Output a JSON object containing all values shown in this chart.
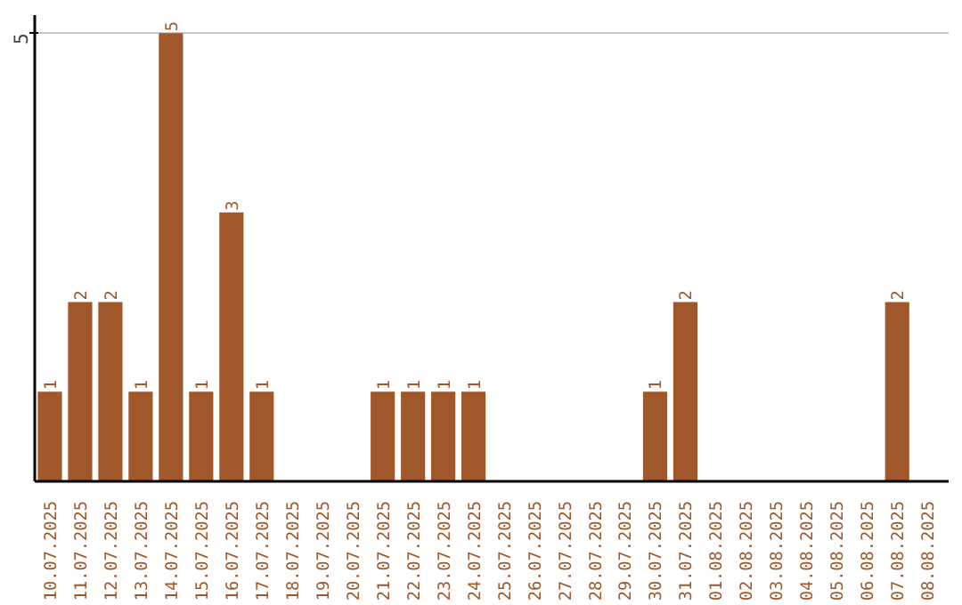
{
  "chart_data": {
    "type": "bar",
    "categories": [
      "10.07.2025",
      "11.07.2025",
      "12.07.2025",
      "13.07.2025",
      "14.07.2025",
      "15.07.2025",
      "16.07.2025",
      "17.07.2025",
      "18.07.2025",
      "19.07.2025",
      "20.07.2025",
      "21.07.2025",
      "22.07.2025",
      "23.07.2025",
      "24.07.2025",
      "25.07.2025",
      "26.07.2025",
      "27.07.2025",
      "28.07.2025",
      "29.07.2025",
      "30.07.2025",
      "31.07.2025",
      "01.08.2025",
      "02.08.2025",
      "03.08.2025",
      "04.08.2025",
      "05.08.2025",
      "06.08.2025",
      "07.08.2025",
      "08.08.2025"
    ],
    "values": [
      1,
      2,
      2,
      1,
      5,
      1,
      3,
      1,
      0,
      0,
      0,
      1,
      1,
      1,
      1,
      0,
      0,
      0,
      0,
      0,
      1,
      2,
      0,
      0,
      0,
      0,
      0,
      0,
      2,
      0
    ],
    "value_labels": [
      "1",
      "2",
      "2",
      "1",
      "5",
      "1",
      "3",
      "1",
      null,
      null,
      null,
      "1",
      "1",
      "1",
      "1",
      null,
      null,
      null,
      null,
      null,
      "1",
      "2",
      null,
      null,
      null,
      null,
      null,
      null,
      "2",
      null
    ],
    "color": "#a0572a",
    "ylim": [
      0,
      5.2
    ],
    "yticks": [
      5
    ],
    "grid": "y"
  }
}
